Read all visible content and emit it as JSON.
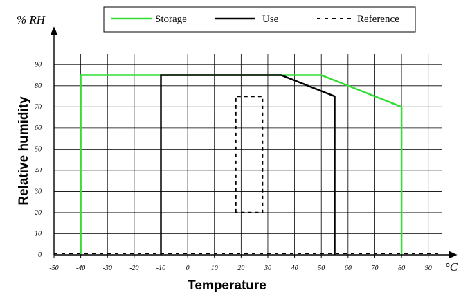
{
  "chart_data": {
    "type": "line",
    "xlabel": "Temperature",
    "ylabel": "Relative humidity",
    "x_unit": "°C",
    "y_unit": "% RH",
    "xlim": [
      -50,
      95
    ],
    "ylim": [
      0,
      95
    ],
    "x_ticks": [
      -50,
      -40,
      -30,
      -20,
      -10,
      0,
      10,
      20,
      30,
      40,
      50,
      60,
      70,
      80,
      90
    ],
    "y_ticks": [
      0,
      10,
      20,
      30,
      40,
      50,
      60,
      70,
      80,
      90
    ],
    "grid": true,
    "legend_position": "top",
    "series": [
      {
        "name": "Storage",
        "color": "#33dd33",
        "style": "solid",
        "x": [
          -40,
          -40,
          50,
          80,
          80
        ],
        "y": [
          0,
          85,
          85,
          70,
          0
        ]
      },
      {
        "name": "Use",
        "color": "#000000",
        "style": "solid",
        "x": [
          -10,
          -10,
          35,
          55,
          55
        ],
        "y": [
          0,
          85,
          85,
          75,
          0
        ]
      },
      {
        "name": "Reference",
        "color": "#000000",
        "style": "dashed",
        "x": [
          18,
          18,
          28,
          28,
          18
        ],
        "y": [
          20,
          75,
          75,
          20,
          20
        ]
      }
    ]
  }
}
